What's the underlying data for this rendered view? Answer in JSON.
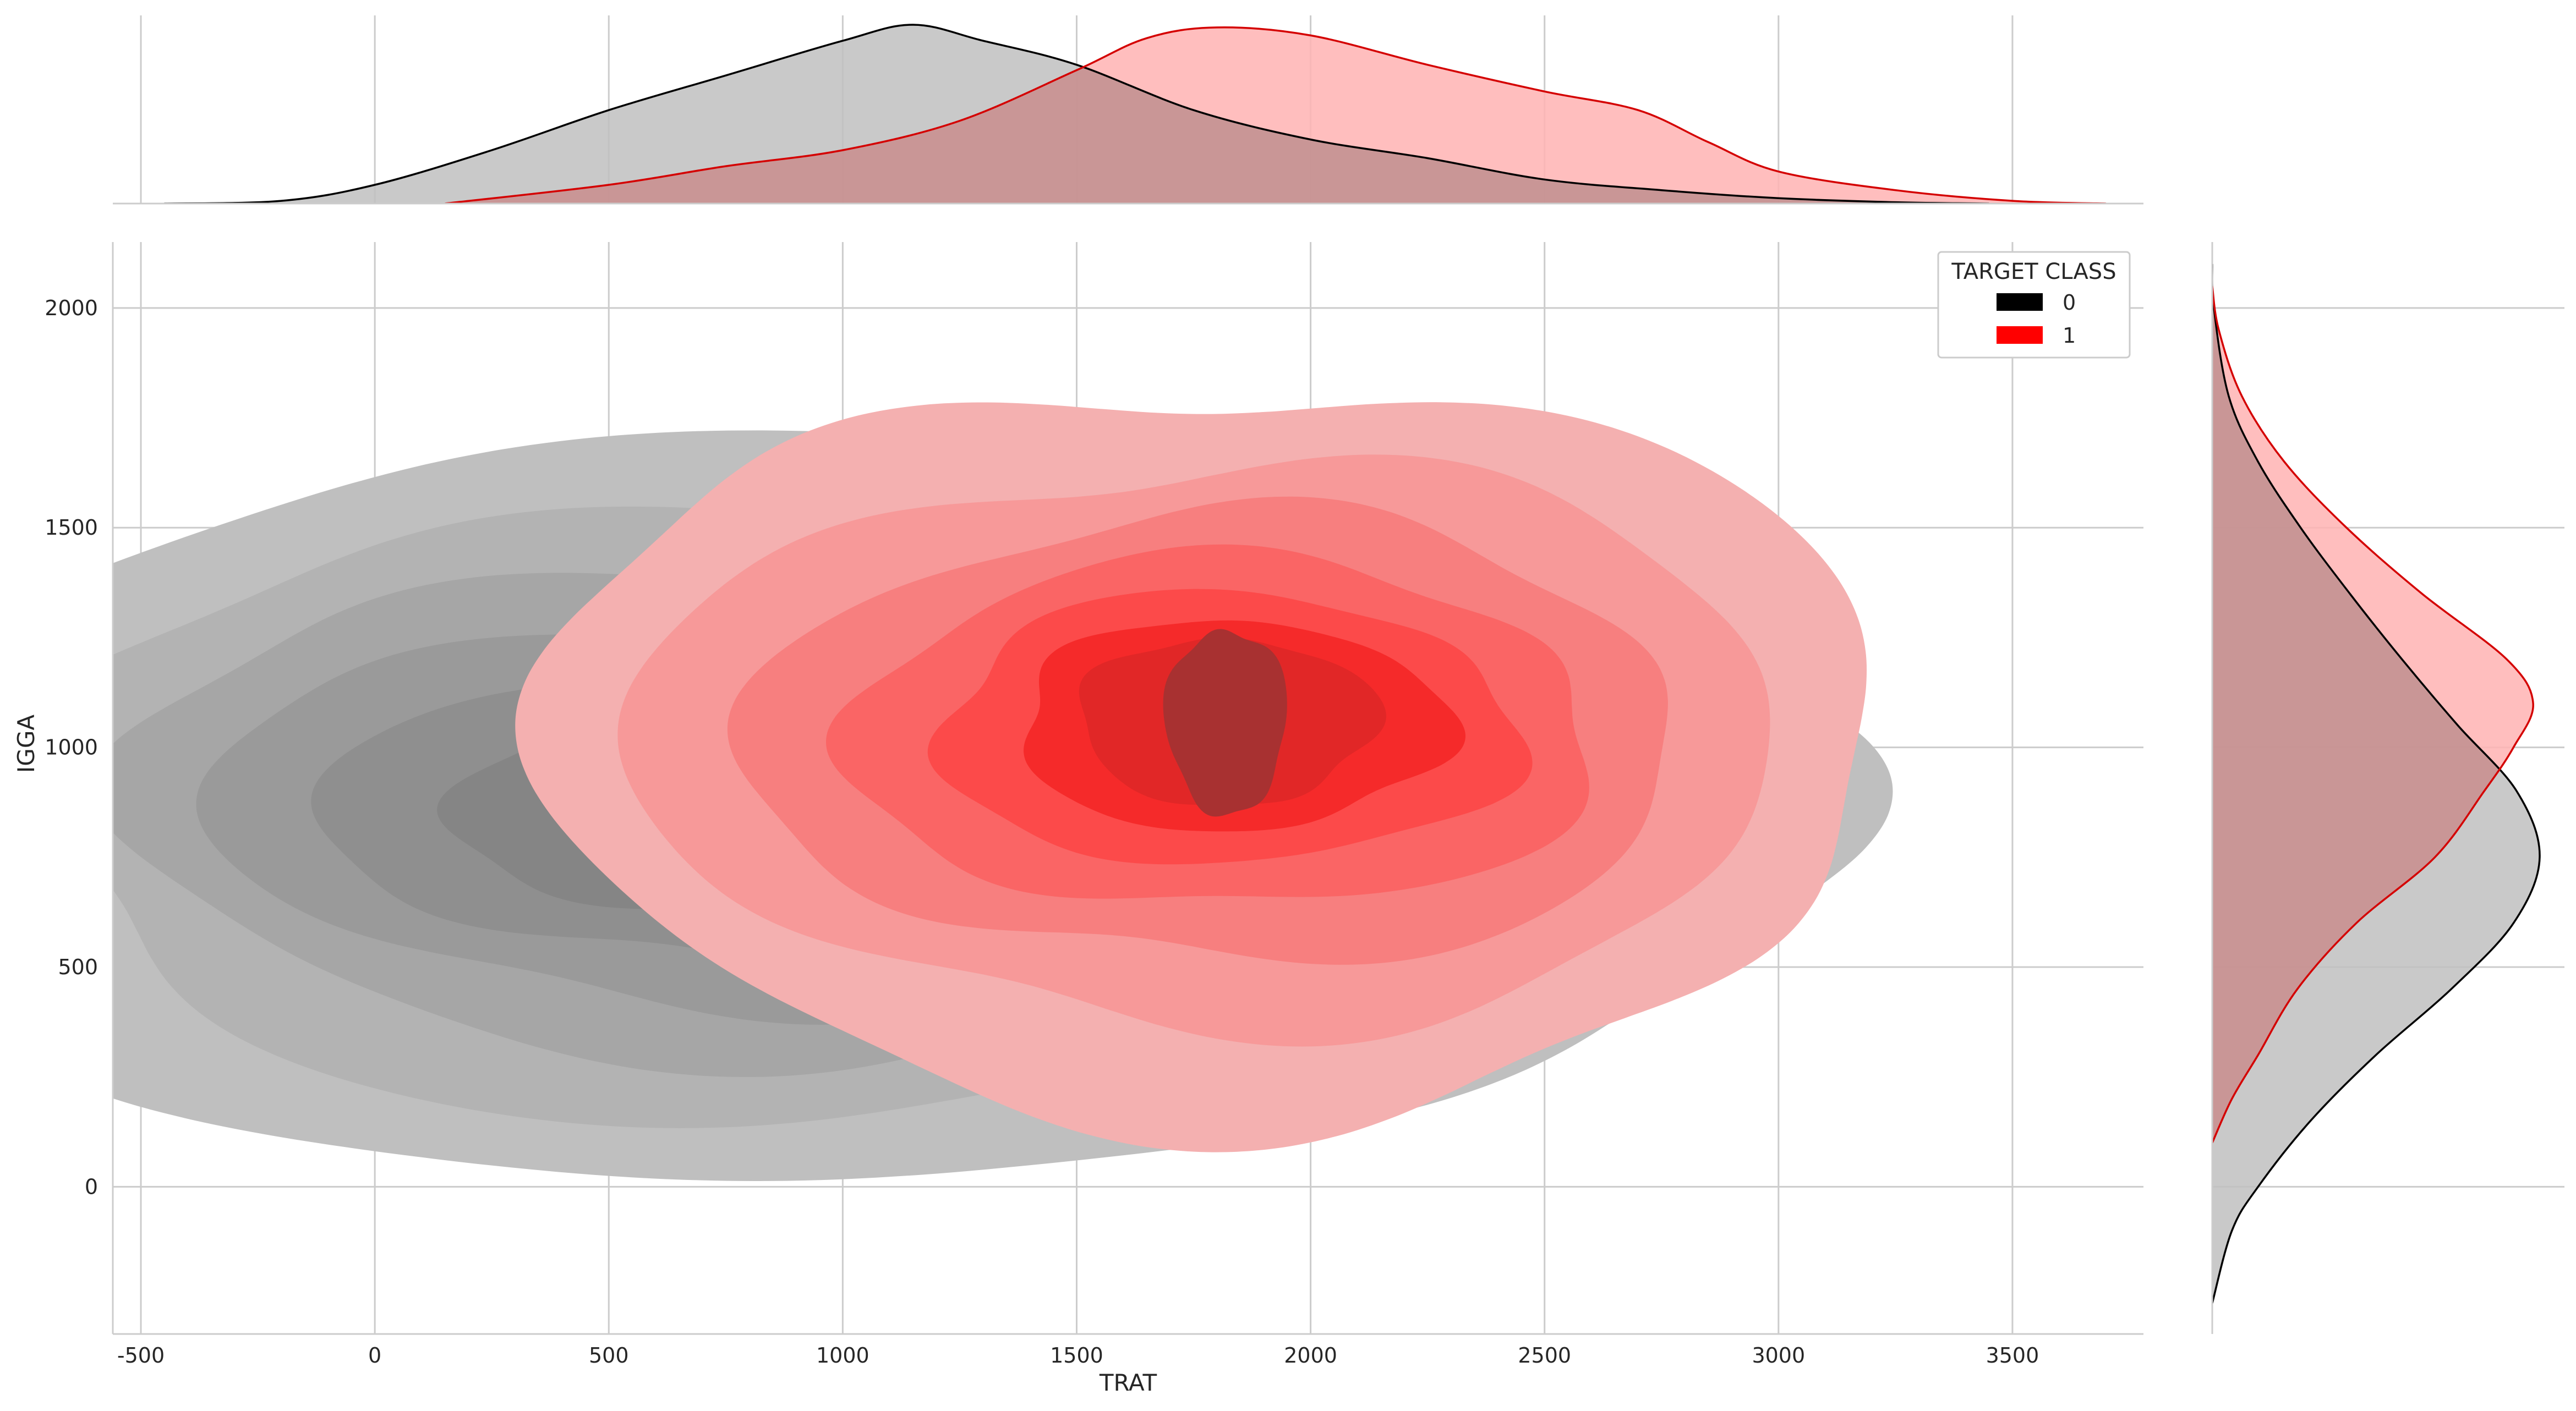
{
  "chart_data": {
    "type": "kde-joint",
    "xlabel": "TRAT",
    "ylabel": "IGGA",
    "xlim": [
      -560,
      3780
    ],
    "ylim": [
      -335,
      2150
    ],
    "x_ticks": [
      -500,
      0,
      500,
      1000,
      1500,
      2000,
      2500,
      3000,
      3500
    ],
    "y_ticks": [
      0,
      500,
      1000,
      1500,
      2000
    ],
    "grid": true,
    "legend": {
      "title": "TARGET CLASS",
      "placement": "top-right",
      "entries": [
        {
          "label": "0",
          "color": "#000000"
        },
        {
          "label": "1",
          "color": "#ff0000"
        }
      ]
    },
    "series": [
      {
        "label": "0",
        "line_color": "#000000",
        "fill_color": "#bfbfbf",
        "x_density": [
          [
            -450,
            0
          ],
          [
            -200,
            0.01
          ],
          [
            0,
            0.07
          ],
          [
            250,
            0.2
          ],
          [
            500,
            0.35
          ],
          [
            750,
            0.48
          ],
          [
            1000,
            0.61
          ],
          [
            1150,
            0.67
          ],
          [
            1300,
            0.61
          ],
          [
            1500,
            0.52
          ],
          [
            1750,
            0.35
          ],
          [
            2000,
            0.24
          ],
          [
            2250,
            0.17
          ],
          [
            2500,
            0.09
          ],
          [
            2750,
            0.05
          ],
          [
            3000,
            0.02
          ],
          [
            3250,
            0.005
          ],
          [
            3450,
            0
          ]
        ],
        "y_density": [
          [
            -265,
            0
          ],
          [
            -100,
            0.06
          ],
          [
            0,
            0.14
          ],
          [
            150,
            0.3
          ],
          [
            300,
            0.5
          ],
          [
            450,
            0.73
          ],
          [
            600,
            0.92
          ],
          [
            750,
            1.0
          ],
          [
            900,
            0.93
          ],
          [
            1050,
            0.75
          ],
          [
            1200,
            0.58
          ],
          [
            1350,
            0.42
          ],
          [
            1500,
            0.27
          ],
          [
            1650,
            0.14
          ],
          [
            1800,
            0.05
          ],
          [
            2000,
            0.005
          ],
          [
            2100,
            0
          ]
        ],
        "contours": [
          {
            "center": [
              1000,
              850
            ],
            "radius_x": 2050,
            "radius_y": 850
          },
          {
            "center": [
              900,
              850
            ],
            "radius_x": 1670,
            "radius_y": 690
          },
          {
            "center": [
              850,
              860
            ],
            "radius_x": 1400,
            "radius_y": 560
          },
          {
            "center": [
              830,
              860
            ],
            "radius_x": 1170,
            "radius_y": 450
          },
          {
            "center": [
              820,
              860
            ],
            "radius_x": 920,
            "radius_y": 350
          },
          {
            "center": [
              820,
              860
            ],
            "radius_x": 650,
            "radius_y": 250
          }
        ]
      },
      {
        "label": "1",
        "line_color": "#d40000",
        "fill_color": "#ffb3b3",
        "x_density": [
          [
            150,
            0
          ],
          [
            500,
            0.07
          ],
          [
            750,
            0.14
          ],
          [
            1000,
            0.2
          ],
          [
            1250,
            0.31
          ],
          [
            1500,
            0.5
          ],
          [
            1650,
            0.62
          ],
          [
            1800,
            0.66
          ],
          [
            2000,
            0.63
          ],
          [
            2250,
            0.52
          ],
          [
            2500,
            0.42
          ],
          [
            2700,
            0.35
          ],
          [
            2850,
            0.23
          ],
          [
            3000,
            0.12
          ],
          [
            3250,
            0.05
          ],
          [
            3500,
            0.01
          ],
          [
            3700,
            0
          ]
        ],
        "y_density": [
          [
            100,
            0
          ],
          [
            200,
            0.06
          ],
          [
            300,
            0.14
          ],
          [
            450,
            0.26
          ],
          [
            600,
            0.44
          ],
          [
            750,
            0.68
          ],
          [
            900,
            0.83
          ],
          [
            1000,
            0.92
          ],
          [
            1100,
            0.98
          ],
          [
            1200,
            0.9
          ],
          [
            1350,
            0.64
          ],
          [
            1500,
            0.41
          ],
          [
            1650,
            0.22
          ],
          [
            1800,
            0.09
          ],
          [
            1950,
            0.02
          ],
          [
            2050,
            0
          ]
        ],
        "contours": [
          {
            "center": [
              1790,
              1000
            ],
            "radius_x": 1430,
            "radius_y": 840
          },
          {
            "center": [
              1790,
              1010
            ],
            "radius_x": 1230,
            "radius_y": 640
          },
          {
            "center": [
              1800,
              1020
            ],
            "radius_x": 1000,
            "radius_y": 510
          },
          {
            "center": [
              1810,
              1030
            ],
            "radius_x": 800,
            "radius_y": 400
          },
          {
            "center": [
              1820,
              1040
            ],
            "radius_x": 620,
            "radius_y": 310
          },
          {
            "center": [
              1830,
              1050
            ],
            "radius_x": 460,
            "radius_y": 240
          },
          {
            "center": [
              1820,
              1060
            ],
            "radius_x": 320,
            "radius_y": 190
          },
          {
            "center": [
              1820,
              1060
            ],
            "radius_x": 130,
            "radius_y": 210
          }
        ]
      }
    ]
  },
  "colors": {
    "grid": "#cccccc",
    "spine": "#cccccc",
    "gray_levels": [
      "#bfbfbf",
      "#b3b3b3",
      "#a6a6a6",
      "#9a9a9a",
      "#8f8f8f",
      "#858585"
    ],
    "red_levels": [
      "#f4b0b0",
      "#f79999",
      "#f77f7f",
      "#fa6565",
      "#fc4a4a",
      "#f52a2a",
      "#e12727",
      "#a83131"
    ]
  }
}
